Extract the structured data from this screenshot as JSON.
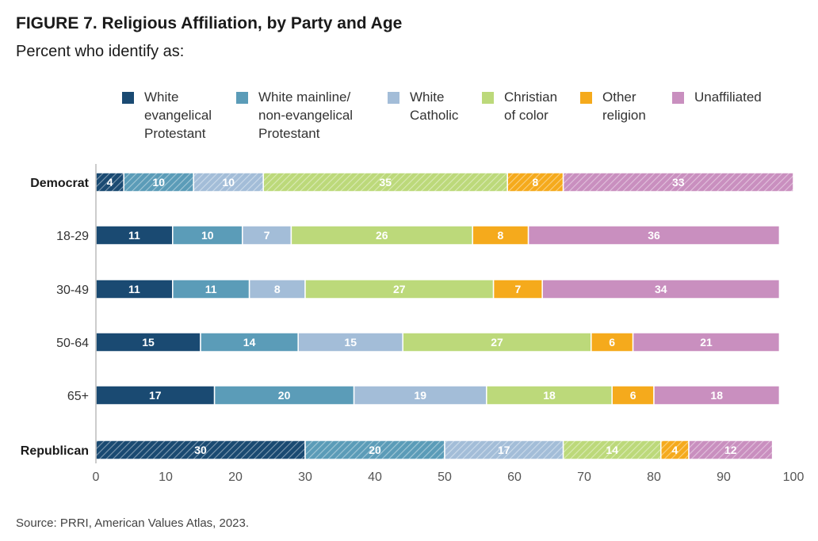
{
  "figure": {
    "title": "FIGURE 7.  Religious Affiliation, by Party and Age",
    "subtitle": "Percent who identify as:",
    "source": "Source: PRRI, American Values Atlas, 2023."
  },
  "chart_data": {
    "type": "bar",
    "orientation": "horizontal",
    "stacked": true,
    "categories": [
      "Democrat",
      "18-29",
      "30-49",
      "50-64",
      "65+",
      "Republican"
    ],
    "bold_categories": [
      "Democrat",
      "Republican"
    ],
    "hatched_categories": [
      "Democrat",
      "Republican"
    ],
    "series": [
      {
        "name": "White evangelical Protestant",
        "legend_lines": [
          "White",
          "evangelical",
          "Protestant"
        ],
        "color": "#1a4a72",
        "values": [
          4,
          11,
          11,
          15,
          17,
          30
        ]
      },
      {
        "name": "White mainline/ non-evangelical Protestant",
        "legend_lines": [
          "White mainline/",
          "non-evangelical",
          "Protestant"
        ],
        "color": "#5b9cb8",
        "values": [
          10,
          10,
          11,
          14,
          20,
          20
        ]
      },
      {
        "name": "White Catholic",
        "legend_lines": [
          "White",
          "Catholic"
        ],
        "color": "#a3bdd8",
        "values": [
          10,
          7,
          8,
          15,
          19,
          17
        ]
      },
      {
        "name": "Christian of color",
        "legend_lines": [
          "Christian",
          "of color"
        ],
        "color": "#bcd97a",
        "values": [
          35,
          26,
          27,
          27,
          18,
          14
        ]
      },
      {
        "name": "Other religion",
        "legend_lines": [
          "Other",
          "religion"
        ],
        "color": "#f5aa1c",
        "values": [
          8,
          8,
          7,
          6,
          6,
          4
        ]
      },
      {
        "name": "Unaffiliated",
        "legend_lines": [
          "Unaffiliated"
        ],
        "color": "#c98fbf",
        "values": [
          33,
          36,
          34,
          21,
          18,
          12
        ]
      }
    ],
    "x_ticks": [
      0,
      10,
      20,
      30,
      40,
      50,
      60,
      70,
      80,
      90,
      100
    ],
    "xlim": [
      0,
      100
    ],
    "legend_position": "top",
    "grid": false
  }
}
